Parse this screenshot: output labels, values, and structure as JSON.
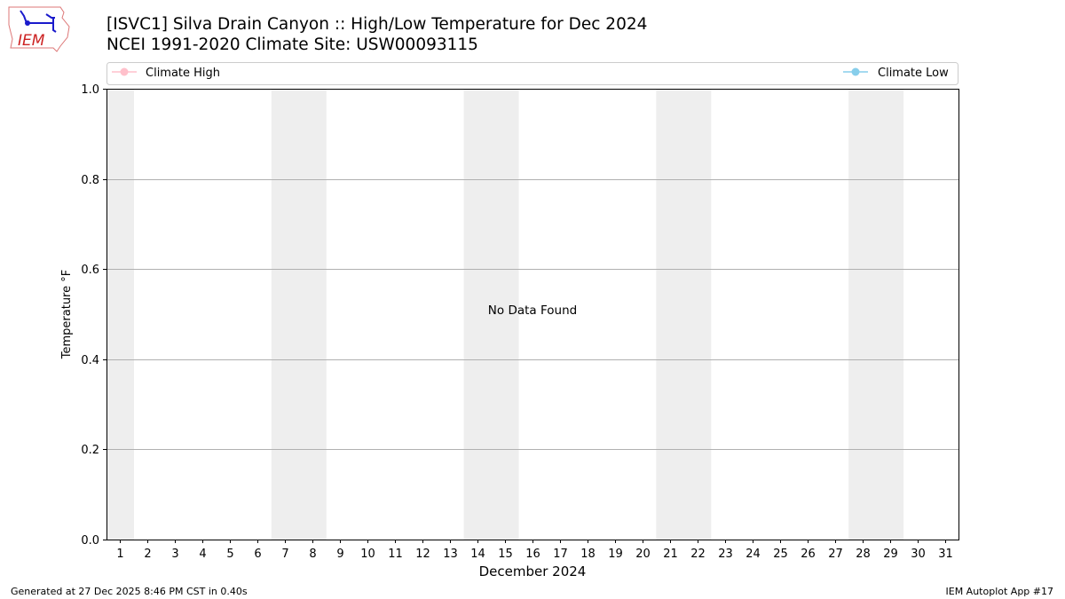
{
  "header": {
    "title_line1": "[ISVC1] Silva Drain Canyon :: High/Low Temperature for Dec 2024",
    "title_line2": "NCEI 1991-2020 Climate Site: USW00093115"
  },
  "logo": {
    "text": "IEM"
  },
  "footer": {
    "left": "Generated at 27 Dec 2025 8:46 PM CST in 0.40s",
    "right": "IEM Autoplot App #17"
  },
  "chart_data": {
    "type": "line",
    "xlabel": "December 2024",
    "ylabel": "Temperature °F",
    "x_categories": [
      "1",
      "2",
      "3",
      "4",
      "5",
      "6",
      "7",
      "8",
      "9",
      "10",
      "11",
      "12",
      "13",
      "14",
      "15",
      "16",
      "17",
      "18",
      "19",
      "20",
      "21",
      "22",
      "23",
      "24",
      "25",
      "26",
      "27",
      "28",
      "29",
      "30",
      "31"
    ],
    "xlim": [
      0.5,
      31.5
    ],
    "ylim": [
      0,
      1
    ],
    "yticks": [
      "0.0",
      "0.2",
      "0.4",
      "0.6",
      "0.8",
      "1.0"
    ],
    "grid": "horizontal",
    "weekend_bands": [
      [
        0.5,
        1.5
      ],
      [
        6.5,
        8.5
      ],
      [
        13.5,
        15.5
      ],
      [
        20.5,
        22.5
      ],
      [
        27.5,
        29.5
      ]
    ],
    "annotation": "No Data Found",
    "legend_placement": "top",
    "series": [
      {
        "name": "Climate High",
        "color": "#ffc0cb",
        "values": []
      },
      {
        "name": "Climate Low",
        "color": "#87ceeb",
        "values": []
      }
    ],
    "band_color": "#eeeeee"
  }
}
